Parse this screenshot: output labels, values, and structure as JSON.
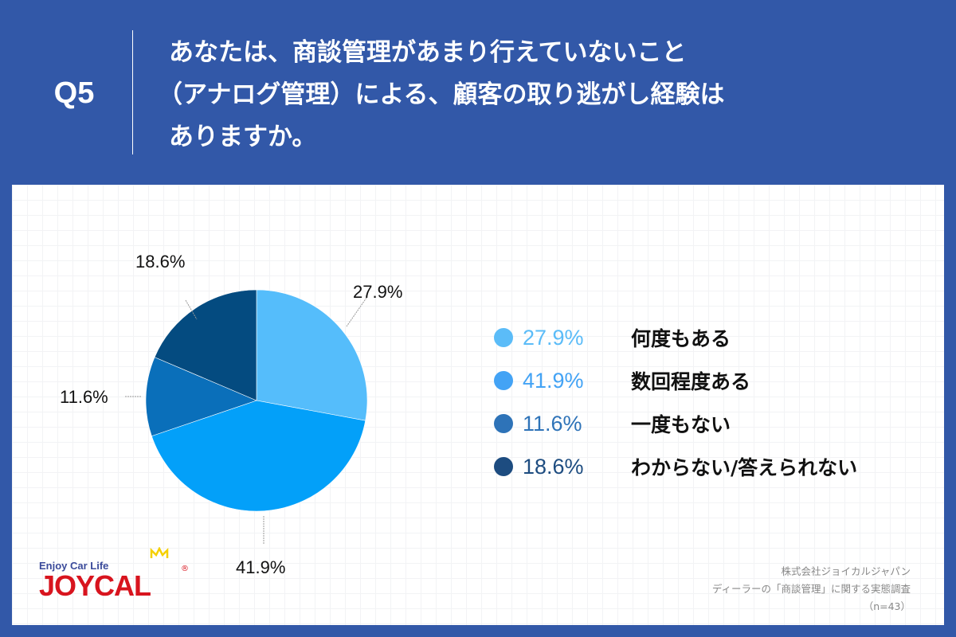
{
  "header": {
    "question_number": "Q5",
    "question_lines": [
      "あなたは、商談管理があまり行えていないこと",
      "（アナログ管理）による、顧客の取り逃がし経験は",
      "ありますか。"
    ]
  },
  "chart": {
    "slice_labels": [
      "27.9%",
      "41.9%",
      "11.6%",
      "18.6%"
    ]
  },
  "legend": [
    {
      "pct": "27.9%",
      "label": "何度もある",
      "color": "#5bbcf8"
    },
    {
      "pct": "41.9%",
      "label": "数回程度ある",
      "color": "#43a3f5"
    },
    {
      "pct": "11.6%",
      "label": "一度もない",
      "color": "#2e73b8"
    },
    {
      "pct": "18.6%",
      "label": "わからない/答えられない",
      "color": "#1d4c80"
    }
  ],
  "logo": {
    "tagline": "Enjoy Car Life",
    "wordmark": "JOYCAL",
    "registered": "®"
  },
  "source": {
    "lines": [
      "株式会社ジョイカルジャパン",
      "ディーラーの「商談管理」に関する実態調査",
      "（n=43）"
    ]
  },
  "colors": {
    "background": "#3258a8",
    "slice_1": "#55bdfb",
    "slice_2": "#03a0f9",
    "slice_3": "#0a6fba",
    "slice_4": "#044b80"
  },
  "chart_data": {
    "type": "pie",
    "title": "あなたは、商談管理があまり行えていないこと（アナログ管理）による、顧客の取り逃がし経験はありますか。",
    "categories": [
      "何度もある",
      "数回程度ある",
      "一度もない",
      "わからない/答えられない"
    ],
    "values": [
      27.9,
      41.9,
      11.6,
      18.6
    ],
    "unit": "%",
    "start_angle": "12 o'clock, clockwise",
    "n": 43,
    "legend_position": "right"
  }
}
